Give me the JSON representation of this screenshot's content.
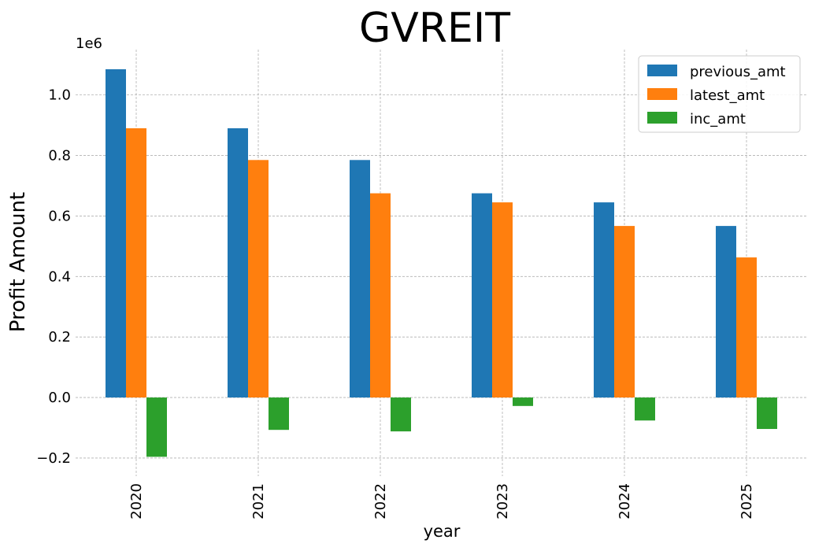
{
  "chart_data": {
    "type": "bar",
    "title": "GVREIT",
    "xlabel": "year",
    "ylabel": "Profit Amount",
    "y_offset_label": "1e6",
    "categories": [
      "2020",
      "2021",
      "2022",
      "2023",
      "2024",
      "2025"
    ],
    "series": [
      {
        "name": "previous_amt",
        "color": "#1f77b4",
        "values": [
          1.085,
          0.89,
          0.785,
          0.675,
          0.645,
          0.567
        ]
      },
      {
        "name": "latest_amt",
        "color": "#ff7f0e",
        "values": [
          0.89,
          0.785,
          0.675,
          0.645,
          0.567,
          0.463
        ]
      },
      {
        "name": "inc_amt",
        "color": "#2ca02c",
        "values": [
          -0.196,
          -0.107,
          -0.112,
          -0.028,
          -0.076,
          -0.104
        ]
      }
    ],
    "y_ticks": [
      "−0.2",
      "0.0",
      "0.2",
      "0.4",
      "0.6",
      "0.8",
      "1.0"
    ],
    "y_tick_values": [
      -0.2,
      0.0,
      0.2,
      0.4,
      0.6,
      0.8,
      1.0
    ],
    "ylim": [
      -0.26,
      1.15
    ],
    "grid": true,
    "legend_position": "top-right"
  }
}
